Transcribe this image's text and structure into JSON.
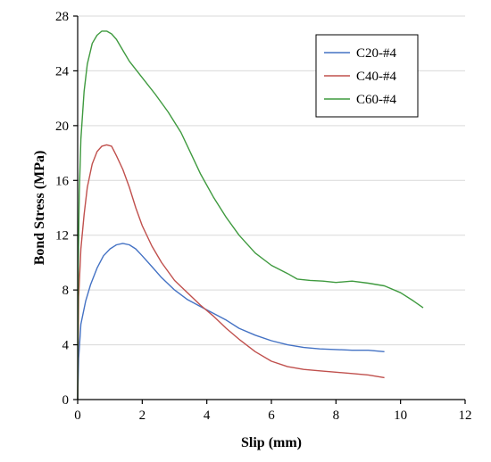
{
  "chart_data": {
    "type": "line",
    "xlabel": "Slip (mm)",
    "ylabel": "Bond Stress (MPa)",
    "xlim": [
      0,
      12
    ],
    "ylim": [
      0,
      28
    ],
    "xticks": [
      0,
      2,
      4,
      6,
      8,
      10,
      12
    ],
    "yticks": [
      0,
      4,
      8,
      12,
      16,
      20,
      24,
      28
    ],
    "grid": "horizontal",
    "legend": "top-right",
    "series": [
      {
        "name": "C20-#4",
        "color": "#4472c4",
        "points": [
          [
            0,
            0
          ],
          [
            0.03,
            3.0
          ],
          [
            0.1,
            5.5
          ],
          [
            0.25,
            7.2
          ],
          [
            0.4,
            8.4
          ],
          [
            0.6,
            9.6
          ],
          [
            0.8,
            10.5
          ],
          [
            1.0,
            11.0
          ],
          [
            1.2,
            11.3
          ],
          [
            1.4,
            11.4
          ],
          [
            1.6,
            11.3
          ],
          [
            1.8,
            11.0
          ],
          [
            2.0,
            10.5
          ],
          [
            2.3,
            9.7
          ],
          [
            2.6,
            8.9
          ],
          [
            3.0,
            8.0
          ],
          [
            3.4,
            7.3
          ],
          [
            3.8,
            6.8
          ],
          [
            4.2,
            6.3
          ],
          [
            4.6,
            5.8
          ],
          [
            5.0,
            5.2
          ],
          [
            5.5,
            4.7
          ],
          [
            6.0,
            4.3
          ],
          [
            6.5,
            4.0
          ],
          [
            7.0,
            3.8
          ],
          [
            7.5,
            3.7
          ],
          [
            8.0,
            3.65
          ],
          [
            8.5,
            3.6
          ],
          [
            9.0,
            3.6
          ],
          [
            9.5,
            3.5
          ]
        ]
      },
      {
        "name": "C40-#4",
        "color": "#c0504d",
        "points": [
          [
            0,
            0
          ],
          [
            0.03,
            7.5
          ],
          [
            0.1,
            11.0
          ],
          [
            0.2,
            13.5
          ],
          [
            0.3,
            15.5
          ],
          [
            0.45,
            17.2
          ],
          [
            0.6,
            18.1
          ],
          [
            0.75,
            18.5
          ],
          [
            0.9,
            18.6
          ],
          [
            1.05,
            18.5
          ],
          [
            1.2,
            17.8
          ],
          [
            1.4,
            16.8
          ],
          [
            1.6,
            15.5
          ],
          [
            1.8,
            14.0
          ],
          [
            2.0,
            12.7
          ],
          [
            2.3,
            11.2
          ],
          [
            2.6,
            10.0
          ],
          [
            3.0,
            8.7
          ],
          [
            3.4,
            7.8
          ],
          [
            3.8,
            6.9
          ],
          [
            4.2,
            6.1
          ],
          [
            4.6,
            5.2
          ],
          [
            5.0,
            4.4
          ],
          [
            5.5,
            3.5
          ],
          [
            6.0,
            2.8
          ],
          [
            6.5,
            2.4
          ],
          [
            7.0,
            2.2
          ],
          [
            7.5,
            2.1
          ],
          [
            8.0,
            2.0
          ],
          [
            8.5,
            1.9
          ],
          [
            9.0,
            1.8
          ],
          [
            9.5,
            1.6
          ]
        ]
      },
      {
        "name": "C60-#4",
        "color": "#3f9a3f",
        "points": [
          [
            0,
            0
          ],
          [
            0.02,
            10.0
          ],
          [
            0.05,
            15.0
          ],
          [
            0.1,
            19.0
          ],
          [
            0.2,
            22.5
          ],
          [
            0.3,
            24.5
          ],
          [
            0.45,
            26.0
          ],
          [
            0.6,
            26.6
          ],
          [
            0.75,
            26.9
          ],
          [
            0.9,
            26.9
          ],
          [
            1.05,
            26.7
          ],
          [
            1.2,
            26.3
          ],
          [
            1.4,
            25.5
          ],
          [
            1.6,
            24.7
          ],
          [
            2.0,
            23.5
          ],
          [
            2.4,
            22.3
          ],
          [
            2.8,
            21.0
          ],
          [
            3.2,
            19.5
          ],
          [
            3.5,
            18.0
          ],
          [
            3.8,
            16.5
          ],
          [
            4.2,
            14.8
          ],
          [
            4.6,
            13.3
          ],
          [
            5.0,
            12.0
          ],
          [
            5.5,
            10.7
          ],
          [
            6.0,
            9.8
          ],
          [
            6.5,
            9.2
          ],
          [
            6.8,
            8.8
          ],
          [
            7.2,
            8.7
          ],
          [
            7.6,
            8.65
          ],
          [
            8.0,
            8.55
          ],
          [
            8.5,
            8.65
          ],
          [
            9.0,
            8.5
          ],
          [
            9.5,
            8.3
          ],
          [
            10.0,
            7.8
          ],
          [
            10.4,
            7.2
          ],
          [
            10.7,
            6.7
          ]
        ]
      }
    ]
  }
}
